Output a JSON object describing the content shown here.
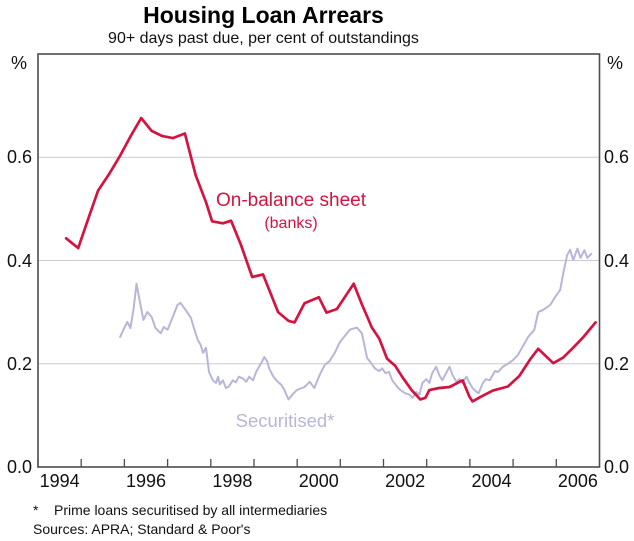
{
  "chart_data": {
    "type": "line",
    "title": "Housing Loan Arrears",
    "subtitle": "90+ days past due, per cent of outstandings",
    "grid": "horizontal",
    "legend_position": "inline-labels",
    "footnote_marker": "*",
    "footnote_text": "Prime loans securitised by all intermediaries",
    "sources": "Sources: APRA; Standard & Poor's",
    "style": {
      "axis_color": "#4d4d4d",
      "grid_color": "#cccccc",
      "background": "#ffffff"
    },
    "y_axis": {
      "unit": "%",
      "min": 0.0,
      "max": 0.8,
      "gridlines": [
        0.2,
        0.4,
        0.6
      ],
      "tick_values": [
        0.6,
        0.4,
        0.2,
        0.0
      ],
      "tick_labels": [
        "0.6",
        "0.4",
        "0.2",
        "0.0"
      ]
    },
    "x_axis": {
      "min": 1994.0,
      "max": 2007.0,
      "tick_marks": [
        1994,
        1995,
        1996,
        1997,
        1998,
        1999,
        2000,
        2001,
        2002,
        2003,
        2004,
        2005,
        2006
      ],
      "label_positions": [
        1994.5,
        1996.5,
        1998.5,
        2000.5,
        2002.5,
        2004.5,
        2006.5
      ],
      "tick_labels": [
        "1994",
        "1996",
        "1998",
        "2000",
        "2002",
        "2004",
        "2006"
      ]
    },
    "series": [
      {
        "id": "on-balance-sheet",
        "name": "On-balance sheet (banks)",
        "label": "On-balance sheet",
        "sublabel": "(banks)",
        "color": "#d41440",
        "line_width": 2.7,
        "points": [
          [
            1994.65,
            0.443
          ],
          [
            1994.93,
            0.424
          ],
          [
            1995.16,
            0.48
          ],
          [
            1995.39,
            0.535
          ],
          [
            1995.65,
            0.568
          ],
          [
            1995.9,
            0.603
          ],
          [
            1996.14,
            0.64
          ],
          [
            1996.39,
            0.676
          ],
          [
            1996.63,
            0.651
          ],
          [
            1996.88,
            0.641
          ],
          [
            1997.12,
            0.637
          ],
          [
            1997.4,
            0.646
          ],
          [
            1997.65,
            0.565
          ],
          [
            1997.89,
            0.513
          ],
          [
            1998.03,
            0.476
          ],
          [
            1998.28,
            0.472
          ],
          [
            1998.47,
            0.477
          ],
          [
            1998.7,
            0.43
          ],
          [
            1998.96,
            0.368
          ],
          [
            1999.21,
            0.373
          ],
          [
            1999.56,
            0.3
          ],
          [
            1999.8,
            0.283
          ],
          [
            1999.94,
            0.28
          ],
          [
            2000.17,
            0.317
          ],
          [
            2000.5,
            0.329
          ],
          [
            2000.68,
            0.299
          ],
          [
            2000.92,
            0.306
          ],
          [
            2001.31,
            0.355
          ],
          [
            2001.5,
            0.315
          ],
          [
            2001.73,
            0.27
          ],
          [
            2001.9,
            0.249
          ],
          [
            2002.08,
            0.21
          ],
          [
            2002.27,
            0.196
          ],
          [
            2002.43,
            0.175
          ],
          [
            2002.66,
            0.148
          ],
          [
            2002.85,
            0.131
          ],
          [
            2002.97,
            0.134
          ],
          [
            2003.06,
            0.149
          ],
          [
            2003.29,
            0.153
          ],
          [
            2003.53,
            0.155
          ],
          [
            2003.76,
            0.165
          ],
          [
            2003.83,
            0.168
          ],
          [
            2003.99,
            0.136
          ],
          [
            2004.06,
            0.127
          ],
          [
            2004.25,
            0.136
          ],
          [
            2004.53,
            0.148
          ],
          [
            2004.88,
            0.156
          ],
          [
            2005.14,
            0.176
          ],
          [
            2005.39,
            0.208
          ],
          [
            2005.58,
            0.229
          ],
          [
            2005.93,
            0.201
          ],
          [
            2006.16,
            0.212
          ],
          [
            2006.39,
            0.231
          ],
          [
            2006.63,
            0.252
          ],
          [
            2006.91,
            0.28
          ]
        ]
      },
      {
        "id": "securitised",
        "name": "Securitised",
        "label": "Securitised*",
        "color": "#b8b6d8",
        "line_width": 2.0,
        "points": [
          [
            1995.9,
            0.252
          ],
          [
            1996.0,
            0.27
          ],
          [
            1996.07,
            0.281
          ],
          [
            1996.14,
            0.269
          ],
          [
            1996.21,
            0.305
          ],
          [
            1996.28,
            0.355
          ],
          [
            1996.37,
            0.315
          ],
          [
            1996.44,
            0.285
          ],
          [
            1996.53,
            0.3
          ],
          [
            1996.63,
            0.291
          ],
          [
            1996.72,
            0.269
          ],
          [
            1996.84,
            0.259
          ],
          [
            1996.91,
            0.271
          ],
          [
            1997.0,
            0.266
          ],
          [
            1997.12,
            0.291
          ],
          [
            1997.23,
            0.314
          ],
          [
            1997.3,
            0.318
          ],
          [
            1997.42,
            0.304
          ],
          [
            1997.54,
            0.289
          ],
          [
            1997.61,
            0.269
          ],
          [
            1997.7,
            0.246
          ],
          [
            1997.77,
            0.236
          ],
          [
            1997.82,
            0.221
          ],
          [
            1997.89,
            0.231
          ],
          [
            1997.96,
            0.184
          ],
          [
            1998.05,
            0.168
          ],
          [
            1998.12,
            0.163
          ],
          [
            1998.17,
            0.175
          ],
          [
            1998.21,
            0.16
          ],
          [
            1998.28,
            0.168
          ],
          [
            1998.35,
            0.153
          ],
          [
            1998.42,
            0.156
          ],
          [
            1998.51,
            0.168
          ],
          [
            1998.58,
            0.164
          ],
          [
            1998.65,
            0.175
          ],
          [
            1998.75,
            0.171
          ],
          [
            1998.82,
            0.165
          ],
          [
            1998.89,
            0.175
          ],
          [
            1998.98,
            0.168
          ],
          [
            1999.05,
            0.184
          ],
          [
            1999.12,
            0.194
          ],
          [
            1999.19,
            0.205
          ],
          [
            1999.24,
            0.213
          ],
          [
            1999.31,
            0.204
          ],
          [
            1999.35,
            0.191
          ],
          [
            1999.45,
            0.175
          ],
          [
            1999.52,
            0.168
          ],
          [
            1999.63,
            0.159
          ],
          [
            1999.7,
            0.15
          ],
          [
            1999.8,
            0.131
          ],
          [
            1999.89,
            0.14
          ],
          [
            1999.99,
            0.149
          ],
          [
            2000.17,
            0.155
          ],
          [
            2000.29,
            0.165
          ],
          [
            2000.4,
            0.153
          ],
          [
            2000.52,
            0.178
          ],
          [
            2000.64,
            0.198
          ],
          [
            2000.75,
            0.205
          ],
          [
            2000.87,
            0.221
          ],
          [
            2000.99,
            0.242
          ],
          [
            2001.22,
            0.266
          ],
          [
            2001.38,
            0.27
          ],
          [
            2001.5,
            0.259
          ],
          [
            2001.62,
            0.211
          ],
          [
            2001.69,
            0.204
          ],
          [
            2001.8,
            0.191
          ],
          [
            2001.9,
            0.186
          ],
          [
            2001.97,
            0.191
          ],
          [
            2002.04,
            0.182
          ],
          [
            2002.13,
            0.184
          ],
          [
            2002.2,
            0.168
          ],
          [
            2002.32,
            0.155
          ],
          [
            2002.39,
            0.149
          ],
          [
            2002.5,
            0.143
          ],
          [
            2002.6,
            0.14
          ],
          [
            2002.67,
            0.134
          ],
          [
            2002.76,
            0.145
          ],
          [
            2002.83,
            0.14
          ],
          [
            2002.9,
            0.163
          ],
          [
            2002.99,
            0.17
          ],
          [
            2003.06,
            0.163
          ],
          [
            2003.13,
            0.182
          ],
          [
            2003.22,
            0.194
          ],
          [
            2003.29,
            0.178
          ],
          [
            2003.36,
            0.168
          ],
          [
            2003.46,
            0.184
          ],
          [
            2003.53,
            0.194
          ],
          [
            2003.6,
            0.178
          ],
          [
            2003.69,
            0.165
          ],
          [
            2003.76,
            0.17
          ],
          [
            2003.83,
            0.163
          ],
          [
            2003.92,
            0.175
          ],
          [
            2003.99,
            0.163
          ],
          [
            2004.06,
            0.153
          ],
          [
            2004.16,
            0.145
          ],
          [
            2004.2,
            0.143
          ],
          [
            2004.3,
            0.163
          ],
          [
            2004.37,
            0.17
          ],
          [
            2004.46,
            0.168
          ],
          [
            2004.58,
            0.186
          ],
          [
            2004.65,
            0.184
          ],
          [
            2004.76,
            0.194
          ],
          [
            2004.88,
            0.2
          ],
          [
            2005.0,
            0.207
          ],
          [
            2005.11,
            0.217
          ],
          [
            2005.18,
            0.227
          ],
          [
            2005.28,
            0.242
          ],
          [
            2005.35,
            0.252
          ],
          [
            2005.42,
            0.259
          ],
          [
            2005.49,
            0.266
          ],
          [
            2005.58,
            0.3
          ],
          [
            2005.69,
            0.304
          ],
          [
            2005.86,
            0.314
          ],
          [
            2005.97,
            0.329
          ],
          [
            2006.09,
            0.343
          ],
          [
            2006.16,
            0.375
          ],
          [
            2006.25,
            0.41
          ],
          [
            2006.32,
            0.421
          ],
          [
            2006.39,
            0.401
          ],
          [
            2006.49,
            0.423
          ],
          [
            2006.56,
            0.405
          ],
          [
            2006.65,
            0.42
          ],
          [
            2006.72,
            0.405
          ],
          [
            2006.81,
            0.413
          ]
        ]
      }
    ]
  }
}
